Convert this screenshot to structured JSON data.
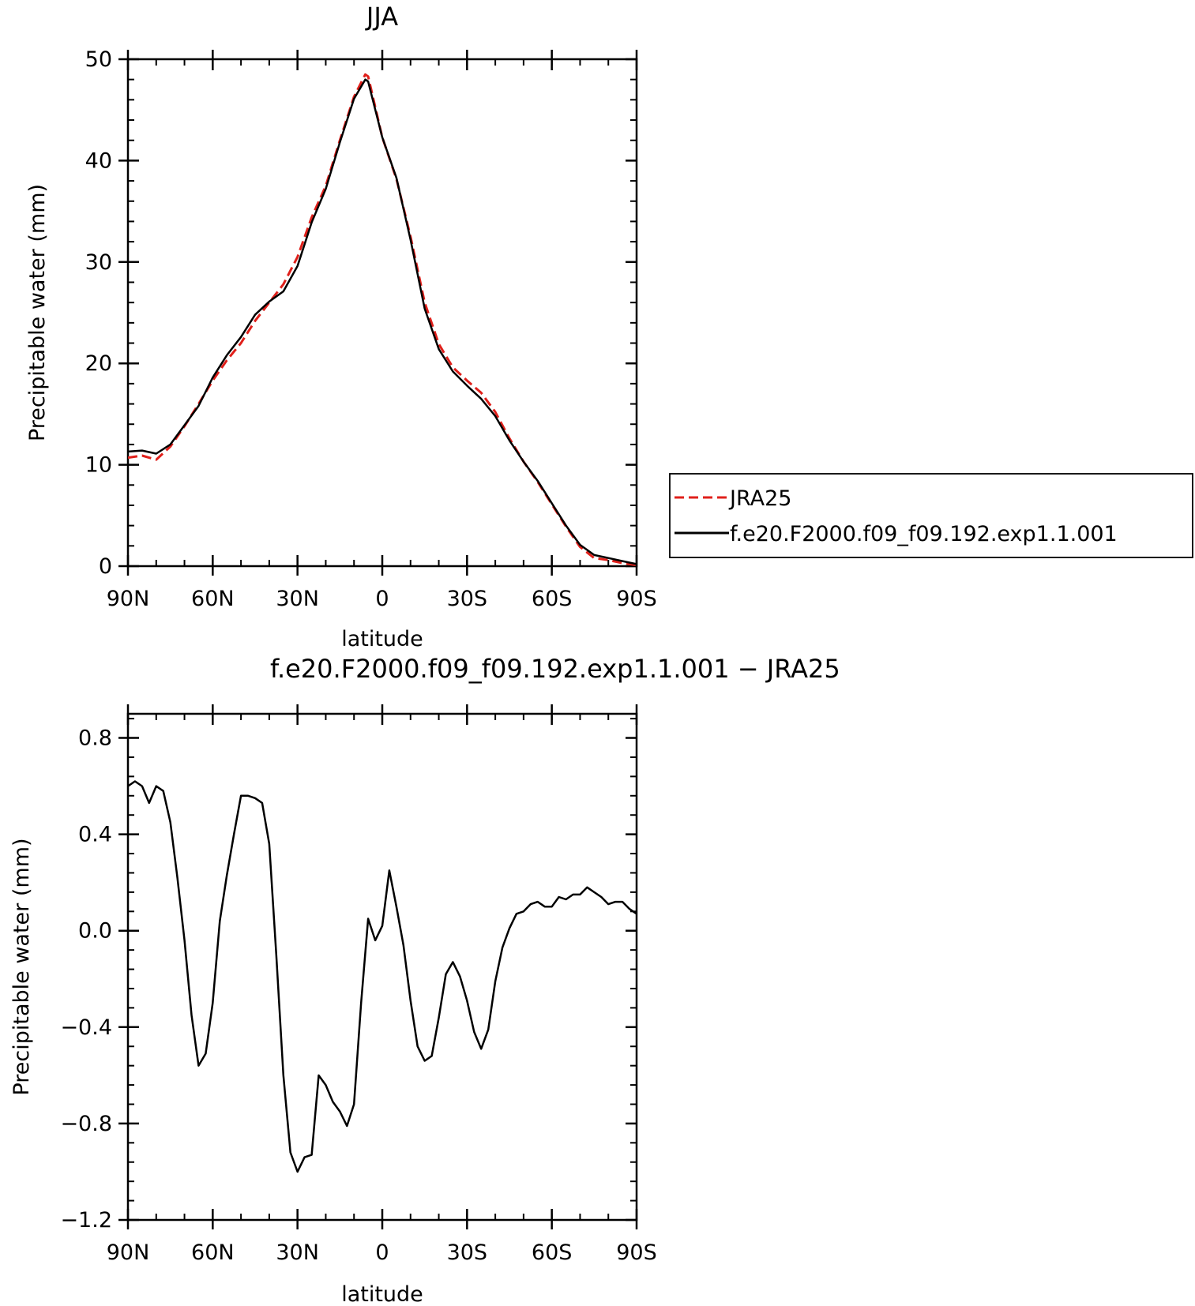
{
  "chart_data": [
    {
      "type": "line",
      "title": "JJA",
      "xlabel": "latitude",
      "ylabel": "Precipitable water (mm)",
      "xlim": [
        90,
        -90
      ],
      "ylim": [
        0,
        50
      ],
      "x_ticks": [
        90,
        60,
        30,
        0,
        -30,
        -60,
        -90
      ],
      "x_tick_labels": [
        "90N",
        "60N",
        "30N",
        "0",
        "30S",
        "60S",
        "90S"
      ],
      "y_ticks": [
        0,
        10,
        20,
        30,
        40,
        50
      ],
      "y_tick_labels": [
        "0",
        "10",
        "20",
        "30",
        "40",
        "50"
      ],
      "grid": false,
      "legend_position": "right, outside plot",
      "series": [
        {
          "name": "JRA25",
          "color": "#e0201b",
          "style": "dashed",
          "x": [
            90,
            85,
            80,
            75,
            70,
            65,
            60,
            55,
            50,
            45,
            40,
            35,
            30,
            25,
            20,
            15,
            10,
            6,
            5,
            0,
            -5,
            -10,
            -15,
            -20,
            -25,
            -30,
            -35,
            -40,
            -45,
            -50,
            -55,
            -60,
            -65,
            -70,
            -75,
            -80,
            -85,
            -90
          ],
          "y": [
            10.7,
            10.9,
            10.5,
            11.8,
            13.8,
            16.0,
            18.3,
            20.3,
            22.0,
            24.2,
            26.0,
            27.8,
            30.5,
            34.4,
            37.5,
            42.0,
            46.3,
            48.5,
            48.3,
            42.3,
            38.2,
            32.5,
            26.0,
            21.9,
            19.6,
            18.3,
            17.1,
            15.2,
            12.6,
            10.3,
            8.3,
            6.1,
            3.9,
            1.9,
            0.8,
            0.6,
            0.3,
            0.1
          ]
        },
        {
          "name": "f.e20.F2000.f09_f09.192.exp1.1.001",
          "color": "#000000",
          "style": "solid",
          "x": [
            90,
            85,
            80,
            75,
            70,
            65,
            60,
            55,
            50,
            45,
            40,
            35,
            30,
            25,
            20,
            15,
            10,
            6,
            5,
            0,
            -5,
            -10,
            -15,
            -20,
            -25,
            -30,
            -35,
            -40,
            -45,
            -50,
            -55,
            -60,
            -65,
            -70,
            -75,
            -80,
            -85,
            -90
          ],
          "y": [
            11.3,
            11.4,
            11.1,
            12.0,
            13.9,
            15.8,
            18.6,
            20.8,
            22.6,
            24.8,
            26.1,
            27.1,
            29.6,
            33.9,
            37.2,
            41.8,
            46.1,
            48.0,
            47.8,
            42.3,
            38.3,
            32.2,
            25.4,
            21.4,
            19.2,
            17.8,
            16.5,
            14.8,
            12.4,
            10.3,
            8.4,
            6.2,
            4.0,
            2.1,
            1.1,
            0.8,
            0.5,
            0.2
          ]
        }
      ]
    },
    {
      "type": "line",
      "title": "f.e20.F2000.f09_f09.192.exp1.1.001 − JRA25",
      "xlabel": "latitude",
      "ylabel": "Precipitable water (mm)",
      "xlim": [
        90,
        -90
      ],
      "ylim": [
        -1.2,
        0.9
      ],
      "x_ticks": [
        90,
        60,
        30,
        0,
        -30,
        -60,
        -90
      ],
      "x_tick_labels": [
        "90N",
        "60N",
        "30N",
        "0",
        "30S",
        "60S",
        "90S"
      ],
      "y_ticks": [
        0.8,
        0.4,
        0.0,
        -0.4,
        -0.8,
        -1.2
      ],
      "y_tick_labels": [
        "0.8",
        "0.4",
        "0.0",
        "−0.4",
        "−0.8",
        "−1.2"
      ],
      "grid": false,
      "series": [
        {
          "color": "#000000",
          "style": "solid",
          "x": [
            90,
            87.5,
            85,
            82.5,
            80,
            77.5,
            75,
            72.5,
            70,
            67.5,
            65,
            62.5,
            60,
            57.5,
            55,
            52.5,
            50,
            47.5,
            45,
            42.5,
            40,
            37.5,
            35,
            32.5,
            30,
            27.5,
            25,
            22.5,
            20,
            17.5,
            15,
            12.5,
            10,
            7.5,
            5,
            2.5,
            0,
            -2.5,
            -5,
            -7.5,
            -10,
            -12.5,
            -15,
            -17.5,
            -20,
            -22.5,
            -25,
            -27.5,
            -30,
            -32.5,
            -35,
            -37.5,
            -40,
            -42.5,
            -45,
            -47.5,
            -50,
            -52.5,
            -55,
            -57.5,
            -60,
            -62.5,
            -65,
            -67.5,
            -70,
            -72.5,
            -75,
            -77.5,
            -80,
            -82.5,
            -85,
            -87.5,
            -90
          ],
          "y": [
            0.6,
            0.62,
            0.6,
            0.53,
            0.6,
            0.58,
            0.45,
            0.22,
            -0.04,
            -0.35,
            -0.56,
            -0.51,
            -0.3,
            0.04,
            0.23,
            0.4,
            0.56,
            0.56,
            0.55,
            0.53,
            0.36,
            -0.1,
            -0.6,
            -0.92,
            -1.0,
            -0.94,
            -0.93,
            -0.6,
            -0.64,
            -0.71,
            -0.75,
            -0.81,
            -0.72,
            -0.3,
            0.05,
            -0.04,
            0.02,
            0.25,
            0.1,
            -0.06,
            -0.29,
            -0.48,
            -0.54,
            -0.52,
            -0.36,
            -0.18,
            -0.13,
            -0.19,
            -0.29,
            -0.42,
            -0.49,
            -0.41,
            -0.21,
            -0.07,
            0.01,
            0.07,
            0.08,
            0.11,
            0.12,
            0.1,
            0.1,
            0.14,
            0.13,
            0.15,
            0.15,
            0.18,
            0.16,
            0.14,
            0.11,
            0.12,
            0.12,
            0.09,
            0.07
          ]
        }
      ]
    }
  ]
}
